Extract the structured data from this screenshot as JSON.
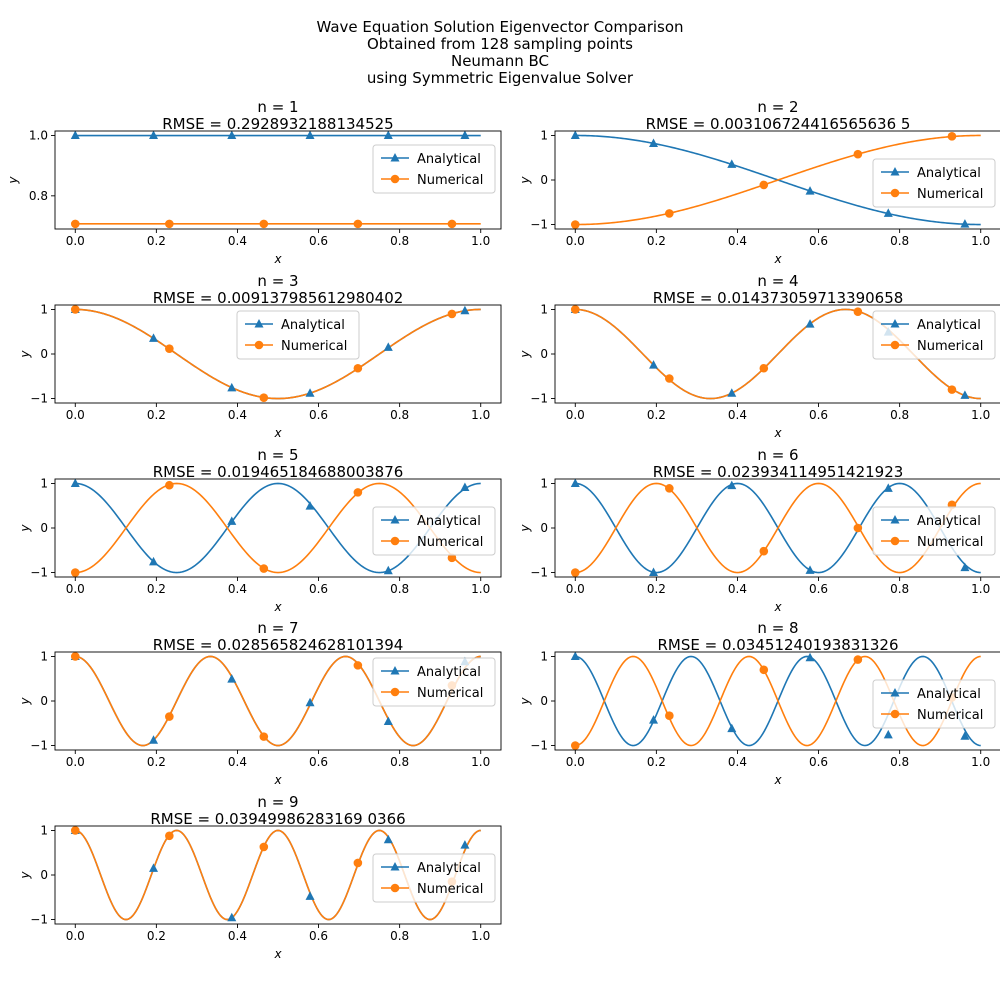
{
  "figure": {
    "title_lines": [
      "Wave Equation Solution Eigenvector Comparison",
      "Obtained from 128 sampling points",
      "Neumann BC",
      "using Symmetric Eigenvalue Solver"
    ]
  },
  "colors": {
    "analytical": "#1f77b4",
    "numerical": "#ff7f0e"
  },
  "chart_data": [
    {
      "type": "line",
      "title_lines": [
        "n = 1",
        "RMSE = 0.2928932188134525"
      ],
      "xlabel": "x",
      "ylabel": "y",
      "xlim": [
        -0.05,
        1.05
      ],
      "ylim": [
        0.69,
        1.015
      ],
      "xticks": [
        0.0,
        0.2,
        0.4,
        0.6,
        0.8,
        1.0
      ],
      "xtick_labels": [
        "0.0",
        "0.2",
        "0.4",
        "0.6",
        "0.8",
        "1.0"
      ],
      "yticks": [
        0.8,
        1.0
      ],
      "ytick_labels": [
        "0.8",
        "1.0"
      ],
      "legend": {
        "placement": "right",
        "entries": [
          "Analytical",
          "Numerical"
        ]
      },
      "series": [
        {
          "name": "Analytical",
          "marker": "triangle",
          "expr": "1",
          "points": [
            [
              0.0,
              1.0
            ],
            [
              0.193,
              1.0
            ],
            [
              0.386,
              1.0
            ],
            [
              0.579,
              1.0
            ],
            [
              0.772,
              1.0
            ],
            [
              0.961,
              1.0
            ]
          ]
        },
        {
          "name": "Numerical",
          "marker": "circle",
          "expr": "0.7071",
          "points": [
            [
              0.0,
              0.707
            ],
            [
              0.232,
              0.707
            ],
            [
              0.465,
              0.707
            ],
            [
              0.697,
              0.707
            ],
            [
              0.929,
              0.707
            ]
          ]
        }
      ]
    },
    {
      "type": "line",
      "title_lines": [
        "n = 2",
        "RMSE = 0.003106724416565636 5"
      ],
      "xlabel": "x",
      "ylabel": "y",
      "xlim": [
        -0.05,
        1.05
      ],
      "ylim": [
        -1.1,
        1.1
      ],
      "xticks": [
        0.0,
        0.2,
        0.4,
        0.6,
        0.8,
        1.0
      ],
      "xtick_labels": [
        "0.0",
        "0.2",
        "0.4",
        "0.6",
        "0.8",
        "1.0"
      ],
      "yticks": [
        -1,
        0,
        1
      ],
      "ytick_labels": [
        "−1",
        "0",
        "1"
      ],
      "legend": {
        "placement": "center-right",
        "entries": [
          "Analytical",
          "Numerical"
        ]
      },
      "series": [
        {
          "name": "Analytical",
          "marker": "triangle",
          "expr": "cos(pi*x)",
          "points": [
            [
              0.0,
              1.0
            ],
            [
              0.193,
              0.82
            ],
            [
              0.386,
              0.35
            ],
            [
              0.579,
              -0.25
            ],
            [
              0.772,
              -0.75
            ],
            [
              0.961,
              -0.99
            ]
          ]
        },
        {
          "name": "Numerical",
          "marker": "circle",
          "expr": "-cos(pi*x)",
          "points": [
            [
              0.0,
              -1.0
            ],
            [
              0.232,
              -0.75
            ],
            [
              0.465,
              -0.11
            ],
            [
              0.697,
              0.58
            ],
            [
              0.929,
              0.98
            ]
          ]
        }
      ]
    },
    {
      "type": "line",
      "title_lines": [
        "n = 3",
        "RMSE = 0.009137985612980402"
      ],
      "xlabel": "x",
      "ylabel": "y",
      "xlim": [
        -0.05,
        1.05
      ],
      "ylim": [
        -1.1,
        1.1
      ],
      "xticks": [
        0.0,
        0.2,
        0.4,
        0.6,
        0.8,
        1.0
      ],
      "xtick_labels": [
        "0.0",
        "0.2",
        "0.4",
        "0.6",
        "0.8",
        "1.0"
      ],
      "yticks": [
        -1,
        0,
        1
      ],
      "ytick_labels": [
        "−1",
        "0",
        "1"
      ],
      "legend": {
        "placement": "upper-center",
        "entries": [
          "Analytical",
          "Numerical"
        ]
      },
      "series": [
        {
          "name": "Analytical",
          "marker": "triangle",
          "expr": "cos(2*pi*x)",
          "points": [
            [
              0.0,
              1.0
            ],
            [
              0.193,
              0.35
            ],
            [
              0.386,
              -0.76
            ],
            [
              0.579,
              -0.88
            ],
            [
              0.772,
              0.15
            ],
            [
              0.961,
              0.97
            ]
          ]
        },
        {
          "name": "Numerical",
          "marker": "circle",
          "expr": "cos(2*pi*x)",
          "points": [
            [
              0.0,
              1.0
            ],
            [
              0.232,
              0.12
            ],
            [
              0.465,
              -0.98
            ],
            [
              0.697,
              -0.32
            ],
            [
              0.929,
              0.9
            ]
          ]
        }
      ]
    },
    {
      "type": "line",
      "title_lines": [
        "n = 4",
        "RMSE = 0.014373059713390658"
      ],
      "xlabel": "x",
      "ylabel": "y",
      "xlim": [
        -0.05,
        1.05
      ],
      "ylim": [
        -1.1,
        1.1
      ],
      "xticks": [
        0.0,
        0.2,
        0.4,
        0.6,
        0.8,
        1.0
      ],
      "xtick_labels": [
        "0.0",
        "0.2",
        "0.4",
        "0.6",
        "0.8",
        "1.0"
      ],
      "yticks": [
        -1,
        0,
        1
      ],
      "ytick_labels": [
        "−1",
        "0",
        "1"
      ],
      "legend": {
        "placement": "upper-right",
        "entries": [
          "Analytical",
          "Numerical"
        ]
      },
      "series": [
        {
          "name": "Analytical",
          "marker": "triangle",
          "expr": "cos(3*pi*x)",
          "points": [
            [
              0.0,
              1.0
            ],
            [
              0.193,
              -0.25
            ],
            [
              0.386,
              -0.88
            ],
            [
              0.579,
              0.67
            ],
            [
              0.772,
              0.49
            ],
            [
              0.961,
              -0.93
            ]
          ]
        },
        {
          "name": "Numerical",
          "marker": "circle",
          "expr": "cos(3*pi*x)",
          "points": [
            [
              0.0,
              1.0
            ],
            [
              0.232,
              -0.55
            ],
            [
              0.465,
              -0.32
            ],
            [
              0.697,
              0.95
            ],
            [
              0.929,
              -0.8
            ]
          ]
        }
      ]
    },
    {
      "type": "line",
      "title_lines": [
        "n = 5",
        "RMSE = 0.019465184688003876"
      ],
      "xlabel": "x",
      "ylabel": "y",
      "xlim": [
        -0.05,
        1.05
      ],
      "ylim": [
        -1.1,
        1.1
      ],
      "xticks": [
        0.0,
        0.2,
        0.4,
        0.6,
        0.8,
        1.0
      ],
      "xtick_labels": [
        "0.0",
        "0.2",
        "0.4",
        "0.6",
        "0.8",
        "1.0"
      ],
      "yticks": [
        -1,
        0,
        1
      ],
      "ytick_labels": [
        "−1",
        "0",
        "1"
      ],
      "legend": {
        "placement": "center-right",
        "entries": [
          "Analytical",
          "Numerical"
        ]
      },
      "series": [
        {
          "name": "Analytical",
          "marker": "triangle",
          "expr": "cos(4*pi*x)",
          "points": [
            [
              0.0,
              1.0
            ],
            [
              0.193,
              -0.76
            ],
            [
              0.386,
              0.15
            ],
            [
              0.579,
              0.49
            ],
            [
              0.772,
              -0.96
            ],
            [
              0.961,
              0.91
            ]
          ]
        },
        {
          "name": "Numerical",
          "marker": "circle",
          "expr": "-cos(4*pi*x)",
          "points": [
            [
              0.0,
              -1.0
            ],
            [
              0.232,
              0.96
            ],
            [
              0.465,
              -0.91
            ],
            [
              0.697,
              0.8
            ],
            [
              0.929,
              -0.67
            ]
          ]
        }
      ]
    },
    {
      "type": "line",
      "title_lines": [
        "n = 6",
        "RMSE = 0.023934114951421923"
      ],
      "xlabel": "x",
      "ylabel": "y",
      "xlim": [
        -0.05,
        1.05
      ],
      "ylim": [
        -1.1,
        1.1
      ],
      "xticks": [
        0.0,
        0.2,
        0.4,
        0.6,
        0.8,
        1.0
      ],
      "xtick_labels": [
        "0.0",
        "0.2",
        "0.4",
        "0.6",
        "0.8",
        "1.0"
      ],
      "yticks": [
        -1,
        0,
        1
      ],
      "ytick_labels": [
        "−1",
        "0",
        "1"
      ],
      "legend": {
        "placement": "center-right",
        "entries": [
          "Analytical",
          "Numerical"
        ]
      },
      "series": [
        {
          "name": "Analytical",
          "marker": "triangle",
          "expr": "cos(5*pi*x)",
          "points": [
            [
              0.0,
              1.0
            ],
            [
              0.193,
              -1.0
            ],
            [
              0.386,
              0.95
            ],
            [
              0.579,
              -0.95
            ],
            [
              0.772,
              0.89
            ],
            [
              0.961,
              -0.89
            ]
          ]
        },
        {
          "name": "Numerical",
          "marker": "circle",
          "expr": "-cos(5*pi*x)",
          "points": [
            [
              0.0,
              -1.0
            ],
            [
              0.232,
              0.89
            ],
            [
              0.465,
              -0.52
            ],
            [
              0.697,
              0.0
            ],
            [
              0.929,
              0.52
            ]
          ]
        }
      ]
    },
    {
      "type": "line",
      "title_lines": [
        "n = 7",
        "RMSE = 0.028565824628101394"
      ],
      "xlabel": "x",
      "ylabel": "y",
      "xlim": [
        -0.05,
        1.05
      ],
      "ylim": [
        -1.1,
        1.1
      ],
      "xticks": [
        0.0,
        0.2,
        0.4,
        0.6,
        0.8,
        1.0
      ],
      "xtick_labels": [
        "0.0",
        "0.2",
        "0.4",
        "0.6",
        "0.8",
        "1.0"
      ],
      "yticks": [
        -1,
        0,
        1
      ],
      "ytick_labels": [
        "−1",
        "0",
        "1"
      ],
      "legend": {
        "placement": "upper-right",
        "entries": [
          "Analytical",
          "Numerical"
        ]
      },
      "series": [
        {
          "name": "Analytical",
          "marker": "triangle",
          "expr": "cos(6*pi*x)",
          "points": [
            [
              0.0,
              1.0
            ],
            [
              0.193,
              -0.88
            ],
            [
              0.386,
              0.49
            ],
            [
              0.579,
              -0.04
            ],
            [
              0.772,
              -0.46
            ],
            [
              0.961,
              0.88
            ]
          ]
        },
        {
          "name": "Numerical",
          "marker": "circle",
          "expr": "cos(6*pi*x)",
          "points": [
            [
              0.0,
              1.0
            ],
            [
              0.232,
              -0.35
            ],
            [
              0.465,
              -0.8
            ],
            [
              0.697,
              0.8
            ],
            [
              0.929,
              0.35
            ]
          ]
        }
      ]
    },
    {
      "type": "line",
      "title_lines": [
        "n = 8",
        "RMSE = 0.03451240193831326"
      ],
      "xlabel": "x",
      "ylabel": "y",
      "xlim": [
        -0.05,
        1.05
      ],
      "ylim": [
        -1.1,
        1.1
      ],
      "xticks": [
        0.0,
        0.2,
        0.4,
        0.6,
        0.8,
        1.0
      ],
      "xtick_labels": [
        "0.0",
        "0.2",
        "0.4",
        "0.6",
        "0.8",
        "1.0"
      ],
      "yticks": [
        -1,
        0,
        1
      ],
      "ytick_labels": [
        "−1",
        "0",
        "1"
      ],
      "legend": {
        "placement": "center-right",
        "entries": [
          "Analytical",
          "Numerical"
        ]
      },
      "series": [
        {
          "name": "Analytical",
          "marker": "triangle",
          "expr": "cos(7*pi*x)",
          "points": [
            [
              0.0,
              1.0
            ],
            [
              0.193,
              -0.43
            ],
            [
              0.386,
              -0.62
            ],
            [
              0.579,
              0.97
            ],
            [
              0.772,
              -0.76
            ],
            [
              0.961,
              -0.79
            ]
          ]
        },
        {
          "name": "Numerical",
          "marker": "circle",
          "expr": "-cos(7*pi*x)",
          "points": [
            [
              0.0,
              -1.0
            ],
            [
              0.232,
              -0.33
            ],
            [
              0.465,
              0.7
            ],
            [
              0.697,
              0.93
            ],
            [
              0.929,
              0.08
            ]
          ]
        }
      ]
    },
    {
      "type": "line",
      "title_lines": [
        "n = 9",
        "RMSE = 0.03949986283169 0366"
      ],
      "xlabel": "x",
      "ylabel": "y",
      "xlim": [
        -0.05,
        1.05
      ],
      "ylim": [
        -1.1,
        1.1
      ],
      "xticks": [
        0.0,
        0.2,
        0.4,
        0.6,
        0.8,
        1.0
      ],
      "xtick_labels": [
        "0.0",
        "0.2",
        "0.4",
        "0.6",
        "0.8",
        "1.0"
      ],
      "yticks": [
        -1,
        0,
        1
      ],
      "ytick_labels": [
        "−1",
        "0",
        "1"
      ],
      "legend": {
        "placement": "center-right",
        "entries": [
          "Analytical",
          "Numerical"
        ]
      },
      "series": [
        {
          "name": "Analytical",
          "marker": "triangle",
          "expr": "cos(8*pi*x)",
          "points": [
            [
              0.0,
              1.0
            ],
            [
              0.193,
              0.15
            ],
            [
              0.386,
              -0.96
            ],
            [
              0.579,
              -0.48
            ],
            [
              0.772,
              0.79
            ],
            [
              0.961,
              0.67
            ]
          ]
        },
        {
          "name": "Numerical",
          "marker": "circle",
          "expr": "cos(8*pi*x)",
          "points": [
            [
              0.0,
              1.0
            ],
            [
              0.232,
              0.88
            ],
            [
              0.465,
              0.63
            ],
            [
              0.697,
              0.27
            ],
            [
              0.929,
              -0.15
            ]
          ]
        }
      ]
    }
  ]
}
